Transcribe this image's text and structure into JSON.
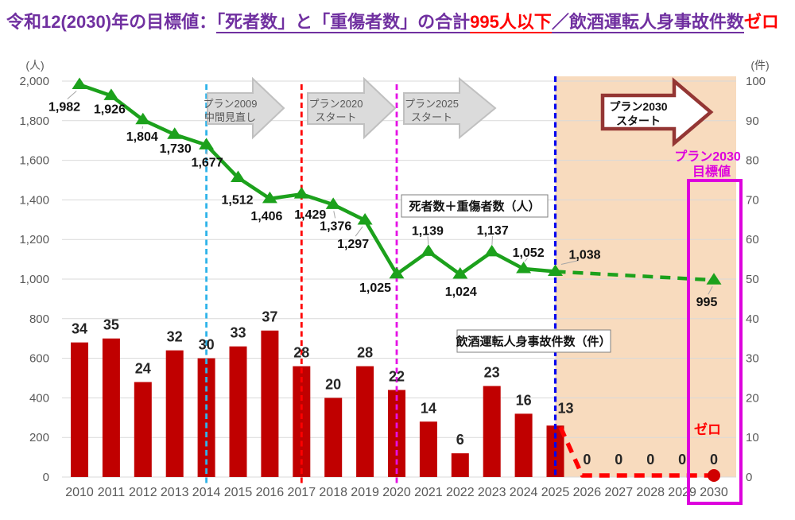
{
  "title": {
    "segments": [
      {
        "text": "令和12(2030)年の目標値：",
        "color": "#7030A0",
        "underline": false
      },
      {
        "text": "「死者数」と「重傷者数」の合計",
        "color": "#7030A0",
        "underline": true
      },
      {
        "text": "995人以下",
        "color": "#FF0000",
        "underline": true
      },
      {
        "text": "／飲酒運転人身事故件数",
        "color": "#7030A0",
        "underline": true
      },
      {
        "text": "ゼロ",
        "color": "#FF0000",
        "underline": false
      }
    ]
  },
  "chart_data": {
    "type": "combo-bar-line",
    "x_years": [
      2010,
      2011,
      2012,
      2013,
      2014,
      2015,
      2016,
      2017,
      2018,
      2019,
      2020,
      2021,
      2022,
      2023,
      2024,
      2025,
      2026,
      2027,
      2028,
      2029,
      2030
    ],
    "left_axis": {
      "unit_label": "（人）",
      "min": 0,
      "max": 2000,
      "step": 200,
      "ticks": [
        "0",
        "200",
        "400",
        "600",
        "800",
        "1,000",
        "1,200",
        "1,400",
        "1,600",
        "1,800",
        "2,000"
      ]
    },
    "right_axis": {
      "unit_label": "（件）",
      "min": 0,
      "max": 100,
      "step": 10,
      "ticks": [
        "0",
        "10",
        "20",
        "30",
        "40",
        "50",
        "60",
        "70",
        "80",
        "90",
        "100"
      ]
    },
    "grid_color": "#D9D9D9",
    "series": [
      {
        "name": "deaths-plus-serious-injuries",
        "label": "死者数＋重傷者数（人）",
        "type": "line",
        "axis": "left",
        "color": "#1CA11C",
        "solid_until_year": 2025,
        "points": [
          {
            "year": 2010,
            "value": 1982,
            "label": "1,982"
          },
          {
            "year": 2011,
            "value": 1926,
            "label": "1,926"
          },
          {
            "year": 2012,
            "value": 1804,
            "label": "1,804"
          },
          {
            "year": 2013,
            "value": 1730,
            "label": "1,730"
          },
          {
            "year": 2014,
            "value": 1677,
            "label": "1,677"
          },
          {
            "year": 2015,
            "value": 1512,
            "label": "1,512"
          },
          {
            "year": 2016,
            "value": 1406,
            "label": "1,406"
          },
          {
            "year": 2017,
            "value": 1429,
            "label": "1,429"
          },
          {
            "year": 2018,
            "value": 1376,
            "label": "1,376"
          },
          {
            "year": 2019,
            "value": 1297,
            "label": "1,297"
          },
          {
            "year": 2020,
            "value": 1025,
            "label": "1,025"
          },
          {
            "year": 2021,
            "value": 1139,
            "label": "1,139"
          },
          {
            "year": 2022,
            "value": 1024,
            "label": "1,024"
          },
          {
            "year": 2023,
            "value": 1137,
            "label": "1,137"
          },
          {
            "year": 2024,
            "value": 1052,
            "label": "1,052"
          },
          {
            "year": 2025,
            "value": 1038,
            "label": "1,038"
          },
          {
            "year": 2030,
            "value": 995,
            "label": "995",
            "projected": true
          }
        ]
      },
      {
        "name": "drunk-driving-injury-accidents",
        "label": "飲酒運転人身事故件数（件）",
        "type": "bar",
        "axis": "right",
        "color": "#C00000",
        "points": [
          {
            "year": 2010,
            "value": 34
          },
          {
            "year": 2011,
            "value": 35
          },
          {
            "year": 2012,
            "value": 24
          },
          {
            "year": 2013,
            "value": 32
          },
          {
            "year": 2014,
            "value": 30
          },
          {
            "year": 2015,
            "value": 33
          },
          {
            "year": 2016,
            "value": 37
          },
          {
            "year": 2017,
            "value": 28
          },
          {
            "year": 2018,
            "value": 20
          },
          {
            "year": 2019,
            "value": 28
          },
          {
            "year": 2020,
            "value": 22
          },
          {
            "year": 2021,
            "value": 14
          },
          {
            "year": 2022,
            "value": 6
          },
          {
            "year": 2023,
            "value": 23
          },
          {
            "year": 2024,
            "value": 16
          },
          {
            "year": 2025,
            "value": 13
          },
          {
            "year": 2026,
            "value": 0
          },
          {
            "year": 2027,
            "value": 0
          },
          {
            "year": 2028,
            "value": 0
          },
          {
            "year": 2029,
            "value": 0
          },
          {
            "year": 2030,
            "value": 0
          }
        ]
      }
    ],
    "target_projection": {
      "color": "#FF0000",
      "dot_color": "#D00000",
      "label": "ゼロ",
      "points": [
        {
          "year": 2025,
          "value": 13
        },
        {
          "year": 2026,
          "value": 0
        },
        {
          "year": 2030,
          "value": 0
        }
      ]
    },
    "milestones": [
      {
        "year": 2014,
        "line_color": "#2FB4E9",
        "style": "gray",
        "label_lines": [
          "プラン2009",
          "中間見直し"
        ]
      },
      {
        "year": 2017,
        "line_color": "#FF0000",
        "style": "gray",
        "label_lines": [
          "プラン2020",
          "スタート"
        ]
      },
      {
        "year": 2020,
        "line_color": "#E511E5",
        "style": "gray",
        "label_lines": [
          "プラン2025",
          "スタート"
        ]
      },
      {
        "year": 2025,
        "line_color": "#0505EE",
        "style": "red-outline",
        "label_lines": [
          "プラン2030",
          "スタート"
        ]
      }
    ],
    "milestone_arrow_colors": {
      "gray_fill": "#DBDBDB",
      "gray_stroke": "#C0C0C0",
      "outline_fill": "#FFFFFF",
      "outline_stroke": "#943634"
    },
    "highlight_region": {
      "from_year": 2025,
      "to_year": 2030,
      "fill": "#F8DBBE"
    },
    "target_box": {
      "year": 2030,
      "border_color": "#DD00DD",
      "label_lines": [
        "プラン2030",
        "目標値"
      ],
      "label_color": "#DD00DD"
    }
  }
}
